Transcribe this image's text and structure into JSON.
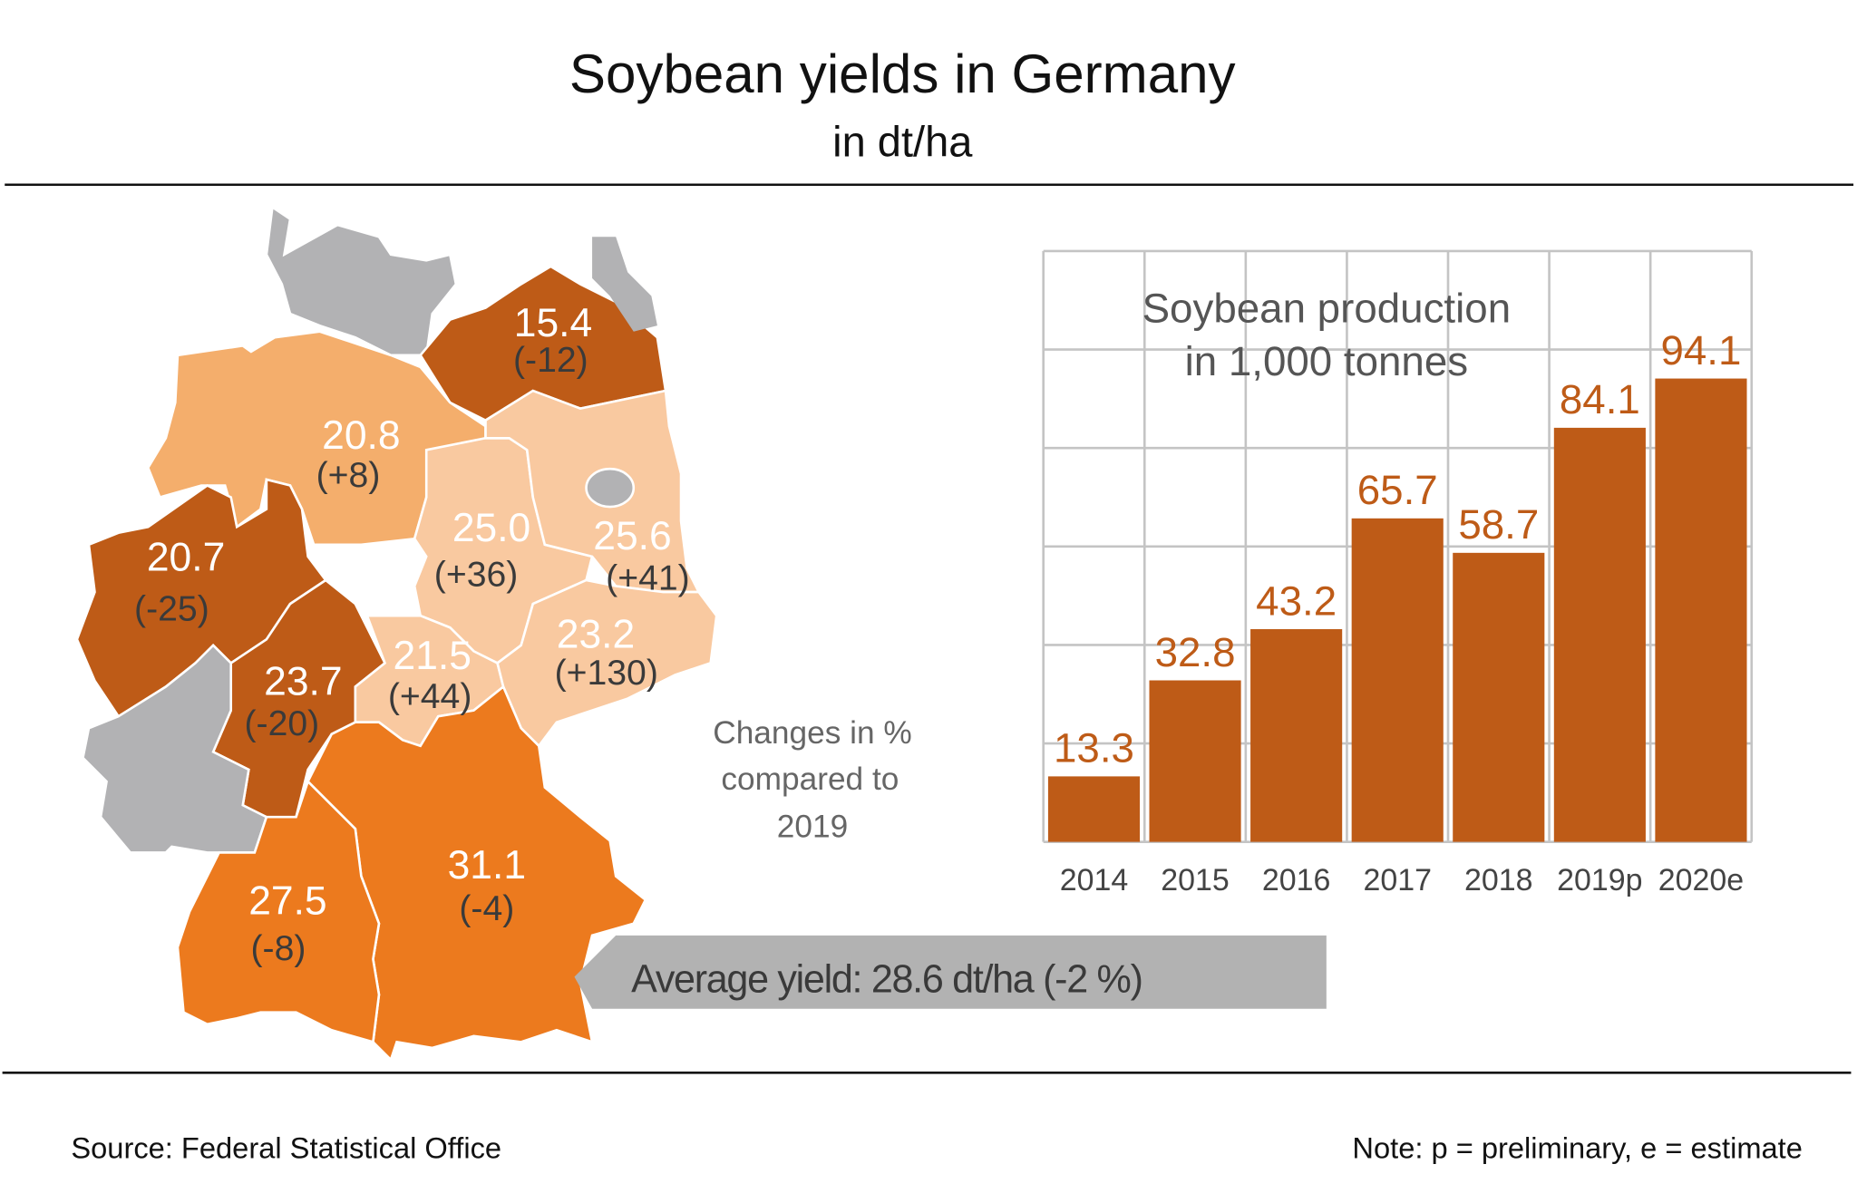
{
  "header": {
    "title": "Soybean yields in Germany",
    "subtitle": "in dt/ha"
  },
  "map": {
    "states": [
      {
        "id": "mecklenburg-vorpommern",
        "yield": "15.4",
        "change": "(-12)"
      },
      {
        "id": "lower-saxony",
        "yield": "20.8",
        "change": "(+8)"
      },
      {
        "id": "saxony-anhalt",
        "yield": "25.0",
        "change": "(+36)"
      },
      {
        "id": "brandenburg",
        "yield": "25.6",
        "change": "(+41)"
      },
      {
        "id": "north-rhine-westphalia",
        "yield": "20.7",
        "change": "(-25)"
      },
      {
        "id": "saxony",
        "yield": "23.2",
        "change": "(+130)"
      },
      {
        "id": "thuringia",
        "yield": "21.5",
        "change": "(+44)"
      },
      {
        "id": "hesse",
        "yield": "23.7",
        "change": "(-20)"
      },
      {
        "id": "bavaria",
        "yield": "31.1",
        "change": "(-4)"
      },
      {
        "id": "baden-wuerttemberg",
        "yield": "27.5",
        "change": "(-8)"
      }
    ],
    "legend_lines": [
      "Changes in %",
      "compared to",
      "2019"
    ],
    "average_callout": "Average yield: 28.6 dt/ha (-2 %)",
    "colors": {
      "dark": "#be5b17",
      "orange": "#ec7a1e",
      "mid": "#f4ae6c",
      "light": "#f9c9a0",
      "gray": "#b2b2b4"
    }
  },
  "chart_data": {
    "type": "bar",
    "title": "Soybean production",
    "subtitle": "in 1,000 tonnes",
    "categories": [
      "2014",
      "2015",
      "2016",
      "2017",
      "2018",
      "2019p",
      "2020e"
    ],
    "values": [
      13.3,
      32.8,
      43.2,
      65.7,
      58.7,
      84.1,
      94.1
    ],
    "value_labels": [
      "13.3",
      "32.8",
      "43.2",
      "65.7",
      "58.7",
      "84.1",
      "94.1"
    ],
    "ylim": [
      0,
      120
    ],
    "grid": true,
    "bar_color": "#be5b17",
    "label_color": "#be5b17"
  },
  "footer": {
    "source": "Source: Federal Statistical Office",
    "note": "Note: p = preliminary, e = estimate"
  }
}
